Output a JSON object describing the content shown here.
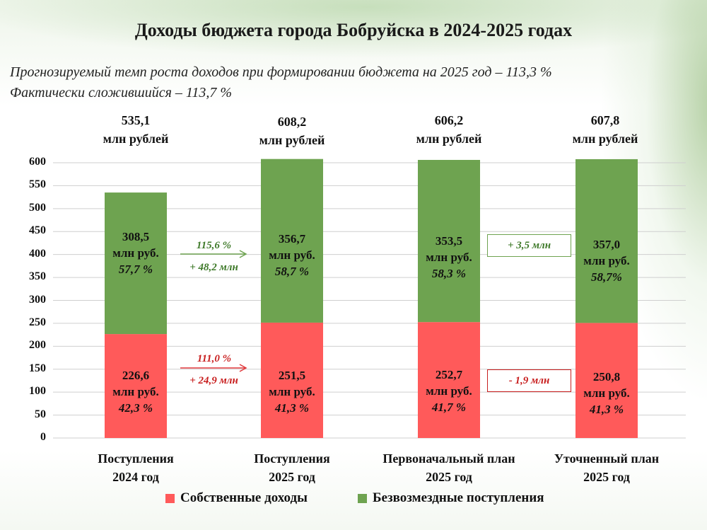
{
  "title": "Доходы бюджета города Бобруйска в 2024-2025 годах",
  "subtitle_line1": "Прогнозируемый темп роста доходов при формировании бюджета на 2025 год – 113,3 %",
  "subtitle_line2": "Фактически сложившийся – 113,7 %",
  "colors": {
    "own": "#ff5a5a",
    "grants": "#6ea350"
  },
  "chart_data": {
    "type": "bar",
    "stacked": true,
    "ylim": [
      0,
      600
    ],
    "yticks": [
      "0",
      "50",
      "100",
      "150",
      "200",
      "250",
      "300",
      "350",
      "400",
      "450",
      "500",
      "550",
      "600"
    ],
    "ytick_values": [
      0,
      50,
      100,
      150,
      200,
      250,
      300,
      350,
      400,
      450,
      500,
      550,
      600
    ],
    "grid": true,
    "legend_position": "bottom",
    "categories": [
      {
        "line1": "Поступления",
        "line2": "2024 год"
      },
      {
        "line1": "Поступления",
        "line2": "2025 год"
      },
      {
        "line1": "Первоначальный план",
        "line2": "2025 год"
      },
      {
        "line1": "Уточненный план",
        "line2": "2025 год"
      }
    ],
    "totals": [
      {
        "value": "535,1",
        "unit": "млн рублей",
        "num": 535.1
      },
      {
        "value": "608,2",
        "unit": "млн рублей",
        "num": 608.2
      },
      {
        "value": "606,2",
        "unit": "млн рублей",
        "num": 606.2
      },
      {
        "value": "607,8",
        "unit": "млн рублей",
        "num": 607.8
      }
    ],
    "series": [
      {
        "name": "Собственные доходы",
        "values": [
          226.6,
          251.5,
          252.7,
          250.8
        ],
        "labels": [
          {
            "value": "226,6",
            "unit": "млн руб.",
            "pct": "42,3 %"
          },
          {
            "value": "251,5",
            "unit": "млн руб.",
            "pct": "41,3 %"
          },
          {
            "value": "252,7",
            "unit": "млн руб.",
            "pct": "41,7 %"
          },
          {
            "value": "250,8",
            "unit": "млн руб.",
            "pct": "41,3 %"
          }
        ]
      },
      {
        "name": "Безвозмездные поступления",
        "values": [
          308.5,
          356.7,
          353.5,
          357.0
        ],
        "labels": [
          {
            "value": "308,5",
            "unit": "млн руб.",
            "pct": "57,7 %"
          },
          {
            "value": "356,7",
            "unit": "млн руб.",
            "pct": "58,7 %"
          },
          {
            "value": "353,5",
            "unit": "млн руб.",
            "pct": "58,3 %"
          },
          {
            "value": "357,0",
            "unit": "млн руб.",
            "pct": "58,7%"
          }
        ]
      }
    ],
    "annotations": {
      "green_growth_pct": "115,6 %",
      "green_growth_abs": "+ 48,2 млн",
      "red_growth_pct": "111,0 %",
      "red_growth_abs": "+ 24,9 млн",
      "green_plan_change": "+ 3,5 млн",
      "red_plan_change": "- 1,9 млн"
    }
  }
}
